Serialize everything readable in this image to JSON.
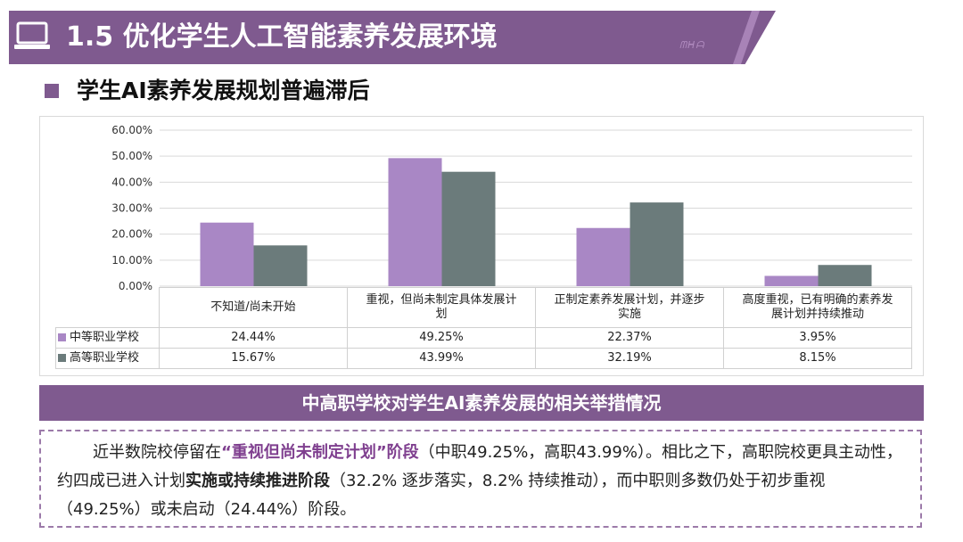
{
  "header": {
    "title": "1.5 优化学生人工智能素养发展环境",
    "logo_text": "ᗰᕼᗩ"
  },
  "section": {
    "title": "学生AI素养发展规划普遍滞后"
  },
  "colors": {
    "header": "#7f5a8f",
    "series_1": "#a987c5",
    "series_2": "#6b7b7b"
  },
  "chart_data": {
    "type": "bar",
    "categories": [
      "不知道/尚未开始",
      "重视，但尚未制定具体发展计划",
      "正制定素养发展计划，并逐步实施",
      "高度重视，已有明确的素养发展计划并持续推动"
    ],
    "category_lines": [
      [
        "不知道/尚未开始"
      ],
      [
        "重视，但尚未制定具体发展计",
        "划"
      ],
      [
        "正制定素养发展计划，并逐步",
        "实施"
      ],
      [
        "高度重视，已有明确的素养发",
        "展计划并持续推动"
      ]
    ],
    "series": [
      {
        "name": "中等职业学校",
        "values": [
          24.44,
          49.25,
          22.37,
          3.95
        ],
        "labels": [
          "24.44%",
          "49.25%",
          "22.37%",
          "3.95%"
        ]
      },
      {
        "name": "高等职业学校",
        "values": [
          15.67,
          43.99,
          32.19,
          8.15
        ],
        "labels": [
          "15.67%",
          "43.99%",
          "32.19%",
          "8.15%"
        ]
      }
    ],
    "ylim": [
      0,
      60
    ],
    "yticks": [
      "0.00%",
      "10.00%",
      "20.00%",
      "30.00%",
      "40.00%",
      "50.00%",
      "60.00%"
    ],
    "grid": true,
    "legend": "data-table"
  },
  "caption": {
    "text": "中高职学校对学生AI素养发展的相关举措情况"
  },
  "summary": {
    "p1": "近半数院校停留在",
    "p2": "“重视但尚未制定计划”阶段",
    "p3": "（中职49.25%，高职43.99%）。相比之下，高职院校更具主动性，约四成已进入计划",
    "p4": "实施或持续推进阶段",
    "p5": "（32.2% 逐步落实，8.2% 持续推动），而中职则多数仍处于初步重视（49.25%）或未启动（24.44%）阶段。"
  }
}
